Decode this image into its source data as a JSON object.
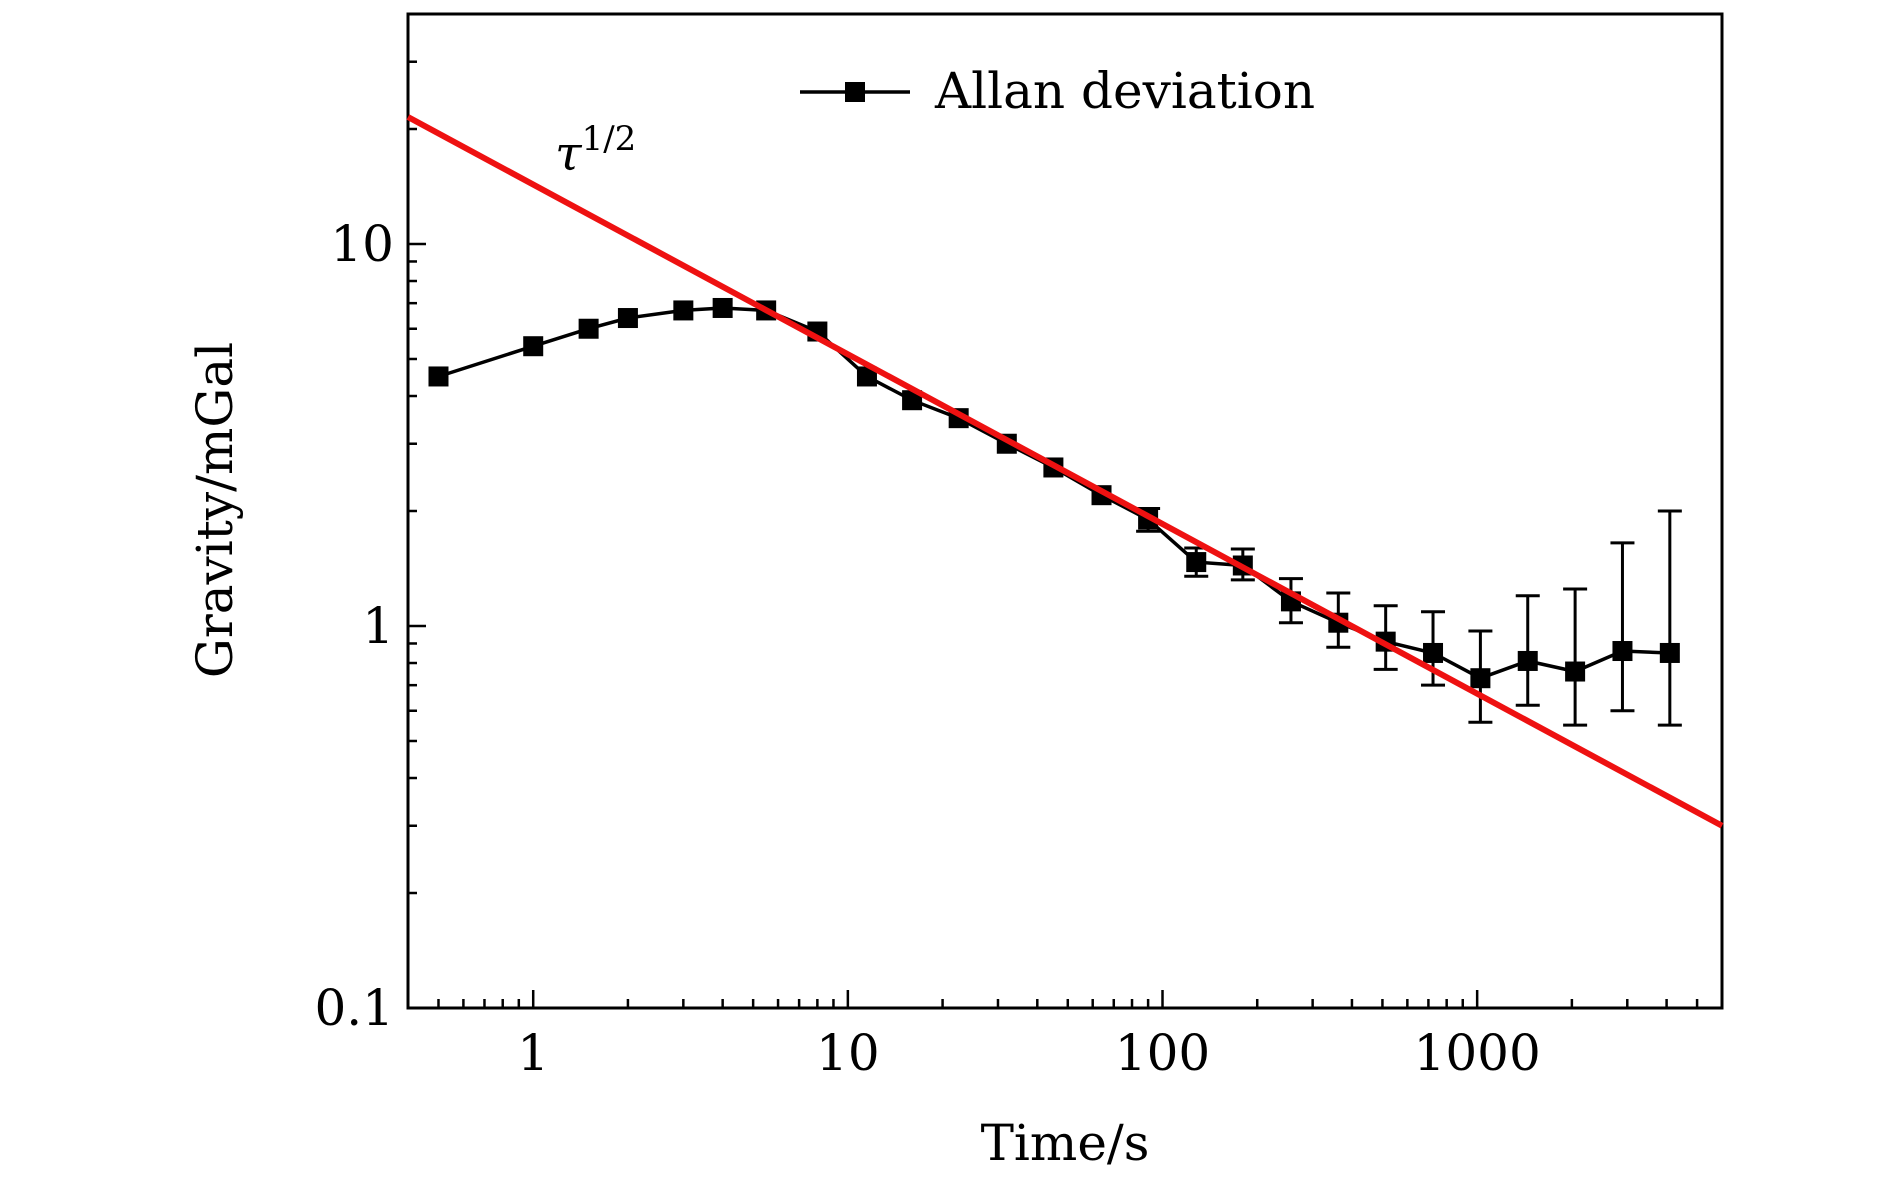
{
  "chart_data": {
    "type": "line",
    "title": "",
    "xlabel": "Time/s",
    "ylabel": "Gravity/mGal",
    "xscale": "log",
    "yscale": "log",
    "xlim": [
      0.4,
      6000
    ],
    "ylim": [
      0.1,
      40
    ],
    "xticks": [
      {
        "value": 1,
        "label": "1"
      },
      {
        "value": 10,
        "label": "10"
      },
      {
        "value": 100,
        "label": "100"
      },
      {
        "value": 1000,
        "label": "1000"
      }
    ],
    "yticks": [
      {
        "value": 0.1,
        "label": "0.1"
      },
      {
        "value": 1,
        "label": "1"
      },
      {
        "value": 10,
        "label": "10"
      }
    ],
    "grid": false,
    "legend_position": "top-center",
    "series": [
      {
        "name": "Allan deviation",
        "color": "#000000",
        "marker": "square",
        "x": [
          0.5,
          1,
          1.5,
          2,
          3,
          4,
          5.5,
          8,
          11.5,
          16,
          22.5,
          32,
          45,
          64,
          90,
          128,
          180,
          256,
          362,
          512,
          724,
          1024,
          1448,
          2048,
          2896,
          4096
        ],
        "y": [
          4.5,
          5.4,
          6.0,
          6.4,
          6.7,
          6.8,
          6.7,
          5.9,
          4.5,
          3.9,
          3.5,
          3.0,
          2.6,
          2.2,
          1.9,
          1.47,
          1.44,
          1.16,
          1.02,
          0.91,
          0.85,
          0.73,
          0.81,
          0.76,
          0.86,
          0.85
        ],
        "err_low": [
          0,
          0,
          0,
          0,
          0,
          0,
          0,
          0,
          0,
          0,
          0,
          0,
          0,
          0,
          0.13,
          0.12,
          0.12,
          0.14,
          0.14,
          0.14,
          0.15,
          0.17,
          0.19,
          0.21,
          0.26,
          0.3
        ],
        "err_high": [
          0,
          0,
          0,
          0,
          0,
          0,
          0,
          0,
          0,
          0,
          0,
          0,
          0,
          0,
          0.13,
          0.13,
          0.15,
          0.17,
          0.2,
          0.22,
          0.24,
          0.24,
          0.39,
          0.49,
          0.79,
          1.15
        ]
      }
    ],
    "fit_line": {
      "label": "τ^{1/2}",
      "label_base": "τ",
      "label_exponent": "1/2",
      "color": "#ee1111",
      "x": [
        0.4,
        6000
      ],
      "y": [
        21.5,
        0.3
      ]
    }
  }
}
